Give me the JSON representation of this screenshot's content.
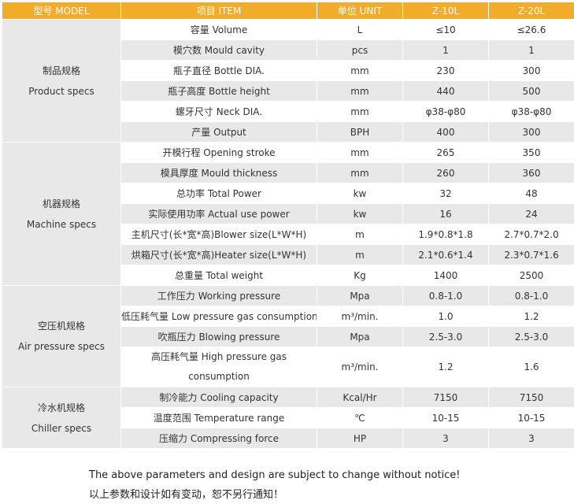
{
  "header": {
    "model": "型号 MODEL",
    "item": "项目 ITEM",
    "unit": "单位 UNIT",
    "z10": "Z-10L",
    "z20": "Z-20L"
  },
  "groups": [
    {
      "label_cn": "制品规格",
      "label_en": "Product specs",
      "rows": [
        {
          "item": "容量 Volume",
          "unit": "L",
          "z10": "≤10",
          "z20": "≤26.6"
        },
        {
          "item": "模穴数 Mould cavity",
          "unit": "pcs",
          "z10": "1",
          "z20": "1"
        },
        {
          "item": "瓶子直径 Bottle DIA.",
          "unit": "mm",
          "z10": "230",
          "z20": "300"
        },
        {
          "item": "瓶子高度 Bottle height",
          "unit": "mm",
          "z10": "440",
          "z20": "500"
        },
        {
          "item": "螺牙尺寸 Neck DIA.",
          "unit": "mm",
          "z10": "φ38-φ80",
          "z20": "φ38-φ80"
        },
        {
          "item": "产量 Output",
          "unit": "BPH",
          "z10": "400",
          "z20": "300"
        }
      ]
    },
    {
      "label_cn": "机器规格",
      "label_en": "Machine specs",
      "rows": [
        {
          "item": "开模行程 Opening stroke",
          "unit": "mm",
          "z10": "265",
          "z20": "350"
        },
        {
          "item": "模具厚度 Mould thickness",
          "unit": "mm",
          "z10": "260",
          "z20": "360"
        },
        {
          "item": "总功率 Total Power",
          "unit": "kw",
          "z10": "32",
          "z20": "48"
        },
        {
          "item": "实际使用功率 Actual use power",
          "unit": "kw",
          "z10": "16",
          "z20": "24"
        },
        {
          "item": "主机尺寸(长*宽*高)Blower size(L*W*H)",
          "unit": "m",
          "z10": "1.9*0.8*1.8",
          "z20": "2.7*0.7*2.0"
        },
        {
          "item": "烘箱尺寸(长*宽*高)Heater size(L*W*H)",
          "unit": "m",
          "z10": "2.1*0.6*1.4",
          "z20": "2.3*0.7*1.6"
        },
        {
          "item": "总重量 Total weight",
          "unit": "Kg",
          "z10": "1400",
          "z20": "2500"
        }
      ]
    },
    {
      "label_cn": "空压机规格",
      "label_en": "Air pressure specs",
      "rows": [
        {
          "item": "工作压力 Working pressure",
          "unit": "Mpa",
          "z10": "0.8-1.0",
          "z20": "0.8-1.0"
        },
        {
          "item": "低压耗气量 Low pressure gas consumption",
          "unit": "m³/min.",
          "z10": "1.0",
          "z20": "1.2"
        },
        {
          "item": "吹瓶压力 Blowing pressure",
          "unit": "Mpa",
          "z10": "2.5-3.0",
          "z20": "2.5-3.0"
        },
        {
          "item": "高压耗气量 High pressure gas consumption",
          "unit": "m³/min.",
          "z10": "1.2",
          "z20": "1.6"
        }
      ]
    },
    {
      "label_cn": "冷水机规格",
      "label_en": "Chiller specs",
      "rows": [
        {
          "item": "制冷能力 Cooling capacity",
          "unit": "Kcal/Hr",
          "z10": "7150",
          "z20": "7150"
        },
        {
          "item": "温度范围 Temperature range",
          "unit": "℃",
          "z10": "10-15",
          "z20": "10-15"
        },
        {
          "item": "压缩力 Compressing force",
          "unit": "HP",
          "z10": "3",
          "z20": "3"
        }
      ]
    }
  ],
  "notes": {
    "en": "The above parameters and design are subject to change without notice!",
    "cn": "以上参数和设计如有变动，恕不另行通知！"
  }
}
